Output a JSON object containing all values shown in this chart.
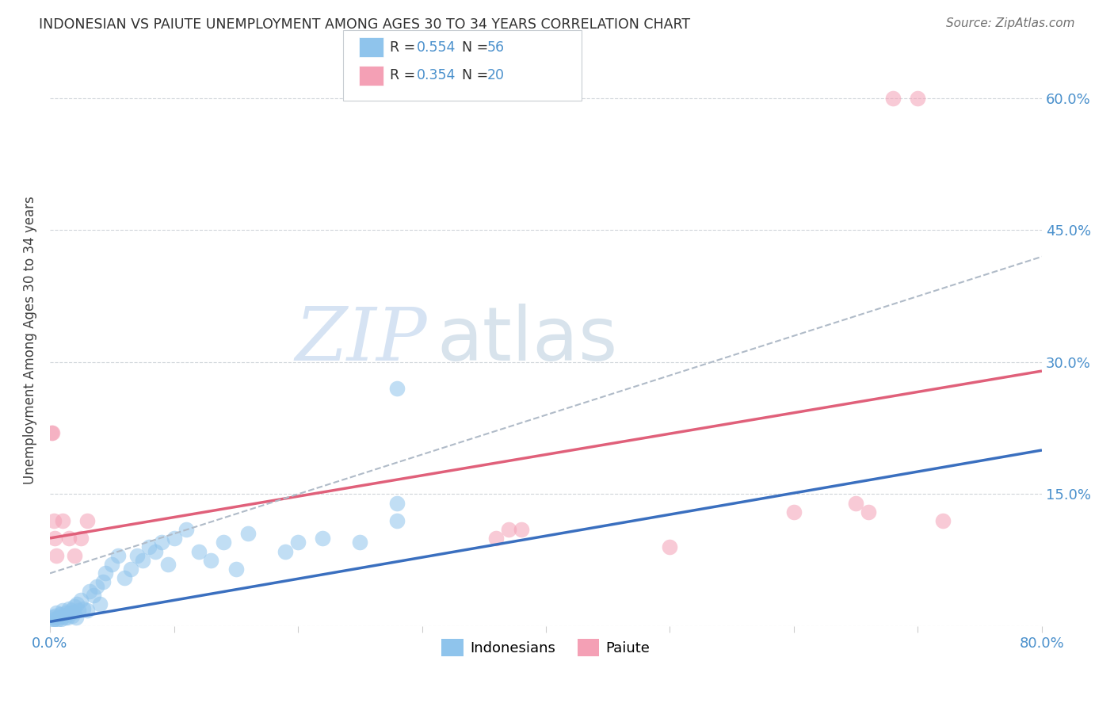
{
  "title": "INDONESIAN VS PAIUTE UNEMPLOYMENT AMONG AGES 30 TO 34 YEARS CORRELATION CHART",
  "source": "Source: ZipAtlas.com",
  "ylabel": "Unemployment Among Ages 30 to 34 years",
  "xlim": [
    0,
    0.8
  ],
  "ylim": [
    0,
    0.65
  ],
  "color_indonesian": "#8FC4EC",
  "color_paiute": "#F4A0B5",
  "color_trend_indonesian": "#3A6FBF",
  "color_trend_paiute": "#E0607A",
  "color_trend_dashed": "#B0BBC8",
  "color_title": "#303030",
  "color_source": "#707070",
  "color_axis_label": "#404040",
  "color_tick_blue": "#4A90CC",
  "background": "#FFFFFF",
  "trend_indo_x0": 0.0,
  "trend_indo_y0": 0.005,
  "trend_indo_x1": 0.8,
  "trend_indo_y1": 0.2,
  "trend_paiute_x0": 0.0,
  "trend_paiute_y0": 0.1,
  "trend_paiute_x1": 0.8,
  "trend_paiute_y1": 0.29,
  "trend_dashed_x0": 0.0,
  "trend_dashed_y0": 0.06,
  "trend_dashed_x1": 0.8,
  "trend_dashed_y1": 0.42,
  "indonesian_x": [
    0.001,
    0.002,
    0.003,
    0.004,
    0.005,
    0.006,
    0.007,
    0.008,
    0.009,
    0.01,
    0.011,
    0.012,
    0.013,
    0.014,
    0.015,
    0.016,
    0.017,
    0.018,
    0.019,
    0.02,
    0.021,
    0.022,
    0.023,
    0.025,
    0.027,
    0.03,
    0.032,
    0.035,
    0.038,
    0.04,
    0.043,
    0.045,
    0.05,
    0.055,
    0.06,
    0.065,
    0.07,
    0.075,
    0.08,
    0.085,
    0.09,
    0.095,
    0.1,
    0.11,
    0.12,
    0.13,
    0.14,
    0.15,
    0.16,
    0.19,
    0.2,
    0.22,
    0.25,
    0.28,
    0.28,
    0.28
  ],
  "indonesian_y": [
    0.005,
    0.01,
    0.008,
    0.012,
    0.015,
    0.007,
    0.01,
    0.013,
    0.008,
    0.018,
    0.012,
    0.01,
    0.015,
    0.01,
    0.02,
    0.015,
    0.018,
    0.012,
    0.016,
    0.022,
    0.01,
    0.025,
    0.018,
    0.03,
    0.02,
    0.018,
    0.04,
    0.035,
    0.045,
    0.025,
    0.05,
    0.06,
    0.07,
    0.08,
    0.055,
    0.065,
    0.08,
    0.075,
    0.09,
    0.085,
    0.095,
    0.07,
    0.1,
    0.11,
    0.085,
    0.075,
    0.095,
    0.065,
    0.105,
    0.085,
    0.095,
    0.1,
    0.095,
    0.12,
    0.14,
    0.27
  ],
  "paiute_x": [
    0.001,
    0.002,
    0.003,
    0.004,
    0.005,
    0.01,
    0.015,
    0.02,
    0.025,
    0.03,
    0.36,
    0.37,
    0.5,
    0.6,
    0.65,
    0.66,
    0.68,
    0.7,
    0.72,
    0.38
  ],
  "paiute_y": [
    0.22,
    0.22,
    0.12,
    0.1,
    0.08,
    0.12,
    0.1,
    0.08,
    0.1,
    0.12,
    0.1,
    0.11,
    0.09,
    0.13,
    0.14,
    0.13,
    0.6,
    0.6,
    0.12,
    0.11
  ]
}
